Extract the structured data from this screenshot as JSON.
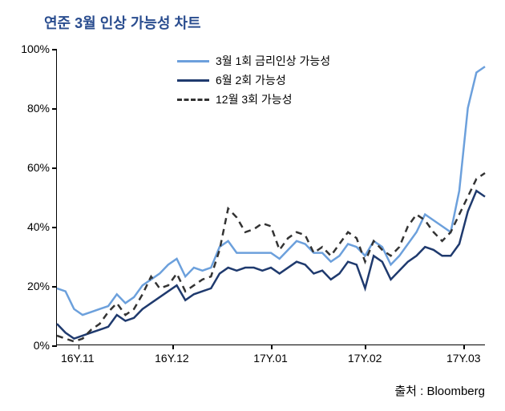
{
  "chart": {
    "type": "line",
    "title": "연준 3월 인상 가능성 차트",
    "title_color": "#2a4d8f",
    "title_fontsize": 18,
    "background_color": "#ffffff",
    "axis_color": "#000000",
    "label_fontsize": 14,
    "ylim": [
      0,
      100
    ],
    "y_tick_step": 20,
    "y_ticks": [
      0,
      20,
      40,
      60,
      80,
      100
    ],
    "y_tick_labels": [
      "0%",
      "20%",
      "40%",
      "60%",
      "80%",
      "100%"
    ],
    "x_labels": [
      "16Y.11",
      "16Y.12",
      "17Y.01",
      "17Y.02",
      "17Y.03"
    ],
    "x_positions_pct": [
      5,
      27,
      50,
      72,
      95
    ],
    "legend_position": "top-center",
    "attribution": "출처 : Bloomberg",
    "line_width": 2.5,
    "series": [
      {
        "name": "3월 1회 금리인상 가능성",
        "color": "#6ca0dc",
        "dash": "solid",
        "data": [
          [
            0,
            19
          ],
          [
            2,
            18
          ],
          [
            4,
            12
          ],
          [
            6,
            10
          ],
          [
            8,
            11
          ],
          [
            10,
            12
          ],
          [
            12,
            13
          ],
          [
            14,
            17
          ],
          [
            16,
            14
          ],
          [
            18,
            16
          ],
          [
            20,
            20
          ],
          [
            22,
            22
          ],
          [
            24,
            24
          ],
          [
            26,
            27
          ],
          [
            28,
            29
          ],
          [
            30,
            23
          ],
          [
            32,
            26
          ],
          [
            34,
            25
          ],
          [
            36,
            26
          ],
          [
            38,
            33
          ],
          [
            40,
            35
          ],
          [
            42,
            31
          ],
          [
            44,
            31
          ],
          [
            46,
            31
          ],
          [
            48,
            31
          ],
          [
            50,
            31
          ],
          [
            52,
            29
          ],
          [
            54,
            32
          ],
          [
            56,
            35
          ],
          [
            58,
            34
          ],
          [
            60,
            31
          ],
          [
            62,
            31
          ],
          [
            64,
            28
          ],
          [
            66,
            30
          ],
          [
            68,
            34
          ],
          [
            70,
            33
          ],
          [
            72,
            30
          ],
          [
            74,
            35
          ],
          [
            76,
            33
          ],
          [
            78,
            27
          ],
          [
            80,
            30
          ],
          [
            82,
            34
          ],
          [
            84,
            38
          ],
          [
            86,
            44
          ],
          [
            88,
            42
          ],
          [
            90,
            40
          ],
          [
            92,
            38
          ],
          [
            94,
            52
          ],
          [
            96,
            80
          ],
          [
            98,
            92
          ],
          [
            100,
            94
          ]
        ]
      },
      {
        "name": "6월 2회 가능성",
        "color": "#1f3a6e",
        "dash": "solid",
        "data": [
          [
            0,
            7
          ],
          [
            2,
            4
          ],
          [
            4,
            2
          ],
          [
            6,
            3
          ],
          [
            8,
            4
          ],
          [
            10,
            5
          ],
          [
            12,
            6
          ],
          [
            14,
            10
          ],
          [
            16,
            8
          ],
          [
            18,
            9
          ],
          [
            20,
            12
          ],
          [
            22,
            14
          ],
          [
            24,
            16
          ],
          [
            26,
            18
          ],
          [
            28,
            20
          ],
          [
            30,
            15
          ],
          [
            32,
            17
          ],
          [
            34,
            18
          ],
          [
            36,
            19
          ],
          [
            38,
            24
          ],
          [
            40,
            26
          ],
          [
            42,
            25
          ],
          [
            44,
            26
          ],
          [
            46,
            26
          ],
          [
            48,
            25
          ],
          [
            50,
            26
          ],
          [
            52,
            24
          ],
          [
            54,
            26
          ],
          [
            56,
            28
          ],
          [
            58,
            27
          ],
          [
            60,
            24
          ],
          [
            62,
            25
          ],
          [
            64,
            22
          ],
          [
            66,
            24
          ],
          [
            68,
            28
          ],
          [
            70,
            27
          ],
          [
            72,
            19
          ],
          [
            74,
            30
          ],
          [
            76,
            28
          ],
          [
            78,
            22
          ],
          [
            80,
            25
          ],
          [
            82,
            28
          ],
          [
            84,
            30
          ],
          [
            86,
            33
          ],
          [
            88,
            32
          ],
          [
            90,
            30
          ],
          [
            92,
            30
          ],
          [
            94,
            34
          ],
          [
            96,
            45
          ],
          [
            98,
            52
          ],
          [
            100,
            50
          ]
        ]
      },
      {
        "name": "12월 3회 가능성",
        "color": "#333333",
        "dash": "dashed",
        "data": [
          [
            0,
            3
          ],
          [
            2,
            2
          ],
          [
            4,
            1
          ],
          [
            6,
            2
          ],
          [
            8,
            5
          ],
          [
            10,
            7
          ],
          [
            12,
            11
          ],
          [
            14,
            14
          ],
          [
            16,
            10
          ],
          [
            18,
            12
          ],
          [
            20,
            17
          ],
          [
            22,
            23
          ],
          [
            24,
            19
          ],
          [
            26,
            20
          ],
          [
            28,
            24
          ],
          [
            30,
            18
          ],
          [
            32,
            20
          ],
          [
            34,
            22
          ],
          [
            36,
            23
          ],
          [
            38,
            32
          ],
          [
            40,
            46
          ],
          [
            42,
            43
          ],
          [
            44,
            38
          ],
          [
            46,
            39
          ],
          [
            48,
            41
          ],
          [
            50,
            40
          ],
          [
            52,
            32
          ],
          [
            54,
            36
          ],
          [
            56,
            38
          ],
          [
            58,
            37
          ],
          [
            60,
            31
          ],
          [
            62,
            33
          ],
          [
            64,
            30
          ],
          [
            66,
            34
          ],
          [
            68,
            38
          ],
          [
            70,
            36
          ],
          [
            72,
            28
          ],
          [
            74,
            35
          ],
          [
            76,
            32
          ],
          [
            78,
            30
          ],
          [
            80,
            33
          ],
          [
            82,
            40
          ],
          [
            84,
            44
          ],
          [
            86,
            42
          ],
          [
            88,
            38
          ],
          [
            90,
            35
          ],
          [
            92,
            38
          ],
          [
            94,
            44
          ],
          [
            96,
            50
          ],
          [
            98,
            56
          ],
          [
            100,
            58
          ]
        ]
      }
    ]
  }
}
